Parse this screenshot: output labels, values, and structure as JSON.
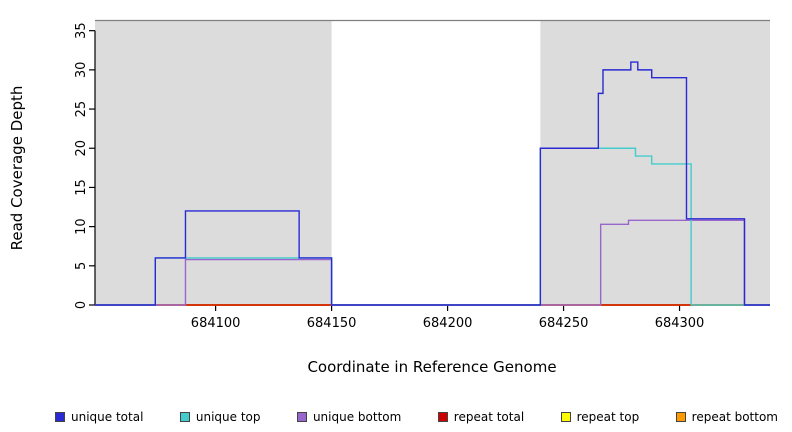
{
  "chart_data": {
    "type": "line",
    "step": true,
    "title": "",
    "xlabel": "Coordinate in Reference Genome",
    "ylabel": "Read Coverage Depth",
    "xlim": [
      684048,
      684339
    ],
    "ylim": [
      0,
      37
    ],
    "x_ticks": [
      684100,
      684150,
      684200,
      684250,
      684300
    ],
    "y_ticks": [
      0,
      5,
      10,
      15,
      20,
      25,
      30,
      35
    ],
    "grid": false,
    "background_bands": {
      "color": "#DCDCDC",
      "top": 36.3,
      "regions": [
        [
          684048,
          684150
        ],
        [
          684240,
          684339
        ]
      ]
    },
    "reference_line": {
      "y": 36.3,
      "color": "#808080"
    },
    "series": [
      {
        "name": "repeat bottom",
        "color": "#FF9900",
        "points": [
          [
            684048,
            0
          ],
          [
            684339,
            0
          ]
        ]
      },
      {
        "name": "repeat top",
        "color": "#FFFF00",
        "points": [
          [
            684048,
            0
          ],
          [
            684339,
            0
          ]
        ]
      },
      {
        "name": "repeat total",
        "color": "#CC0000",
        "points": [
          [
            684048,
            0
          ],
          [
            684339,
            0
          ]
        ]
      },
      {
        "name": "unique bottom",
        "color": "#9966CC",
        "points": [
          [
            684048,
            0
          ],
          [
            684087,
            0
          ],
          [
            684087,
            5.8
          ],
          [
            684150,
            5.8
          ],
          [
            684150,
            0
          ],
          [
            684266,
            0
          ],
          [
            684266,
            10.3
          ],
          [
            684278,
            10.3
          ],
          [
            684278,
            10.8
          ],
          [
            684328,
            10.8
          ],
          [
            684328,
            0
          ],
          [
            684339,
            0
          ]
        ]
      },
      {
        "name": "unique top",
        "color": "#44CCCC",
        "points": [
          [
            684048,
            0
          ],
          [
            684074,
            0
          ],
          [
            684074,
            6
          ],
          [
            684150,
            6
          ],
          [
            684150,
            0
          ],
          [
            684240,
            0
          ],
          [
            684240,
            20
          ],
          [
            684281,
            20
          ],
          [
            684281,
            19
          ],
          [
            684288,
            19
          ],
          [
            684288,
            18
          ],
          [
            684305,
            18
          ],
          [
            684305,
            0
          ],
          [
            684339,
            0
          ]
        ]
      },
      {
        "name": "unique total",
        "color": "#2A2AD4",
        "points": [
          [
            684048,
            0
          ],
          [
            684074,
            0
          ],
          [
            684074,
            6
          ],
          [
            684087,
            6
          ],
          [
            684087,
            12
          ],
          [
            684136,
            12
          ],
          [
            684136,
            6
          ],
          [
            684150,
            6
          ],
          [
            684150,
            0
          ],
          [
            684240,
            0
          ],
          [
            684240,
            20
          ],
          [
            684265,
            20
          ],
          [
            684265,
            27
          ],
          [
            684267,
            27
          ],
          [
            684267,
            30
          ],
          [
            684279,
            30
          ],
          [
            684279,
            31
          ],
          [
            684282,
            31
          ],
          [
            684282,
            30
          ],
          [
            684288,
            30
          ],
          [
            684288,
            29
          ],
          [
            684303,
            29
          ],
          [
            684303,
            11
          ],
          [
            684328,
            11
          ],
          [
            684328,
            0
          ],
          [
            684339,
            0
          ]
        ]
      }
    ],
    "legend": {
      "position": "bottom",
      "items": [
        {
          "label": "unique total",
          "color": "#2A2AD4"
        },
        {
          "label": "unique top",
          "color": "#44CCCC"
        },
        {
          "label": "unique bottom",
          "color": "#9966CC"
        },
        {
          "label": "repeat total",
          "color": "#CC0000"
        },
        {
          "label": "repeat top",
          "color": "#FFFF00"
        },
        {
          "label": "repeat bottom",
          "color": "#FF9900"
        }
      ]
    }
  }
}
